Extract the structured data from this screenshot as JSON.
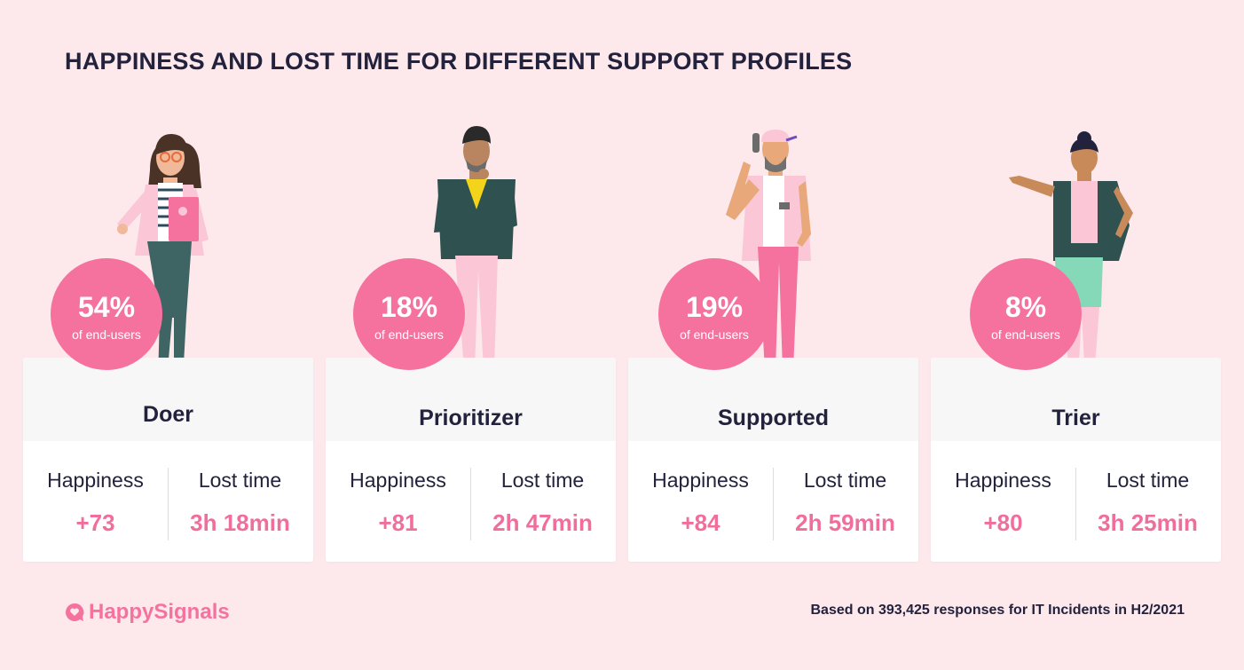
{
  "title": "HAPPINESS AND LOST TIME FOR DIFFERENT SUPPORT PROFILES",
  "metric_labels": {
    "happiness": "Happiness",
    "lost_time": "Lost time"
  },
  "profiles": [
    {
      "name": "Doer",
      "share": "54%",
      "share_label": "of end-users",
      "happiness": "+73",
      "lost_time": "3h 18min"
    },
    {
      "name": "Prioritizer",
      "share": "18%",
      "share_label": "of end-users",
      "happiness": "+81",
      "lost_time": "2h 47min"
    },
    {
      "name": "Supported",
      "share": "19%",
      "share_label": "of end-users",
      "happiness": "+84",
      "lost_time": "2h 59min"
    },
    {
      "name": "Trier",
      "share": "8%",
      "share_label": "of end-users",
      "happiness": "+80",
      "lost_time": "3h 25min"
    }
  ],
  "brand": {
    "name": "HappySignals",
    "logo_icon": "heart-speech-bubble-icon",
    "color": "#f5729e"
  },
  "footnote": "Based on 393,425 responses for IT Incidents in H2/2021",
  "colors": {
    "background": "#fde8ec",
    "accent": "#f06e9c",
    "text": "#22223d"
  }
}
